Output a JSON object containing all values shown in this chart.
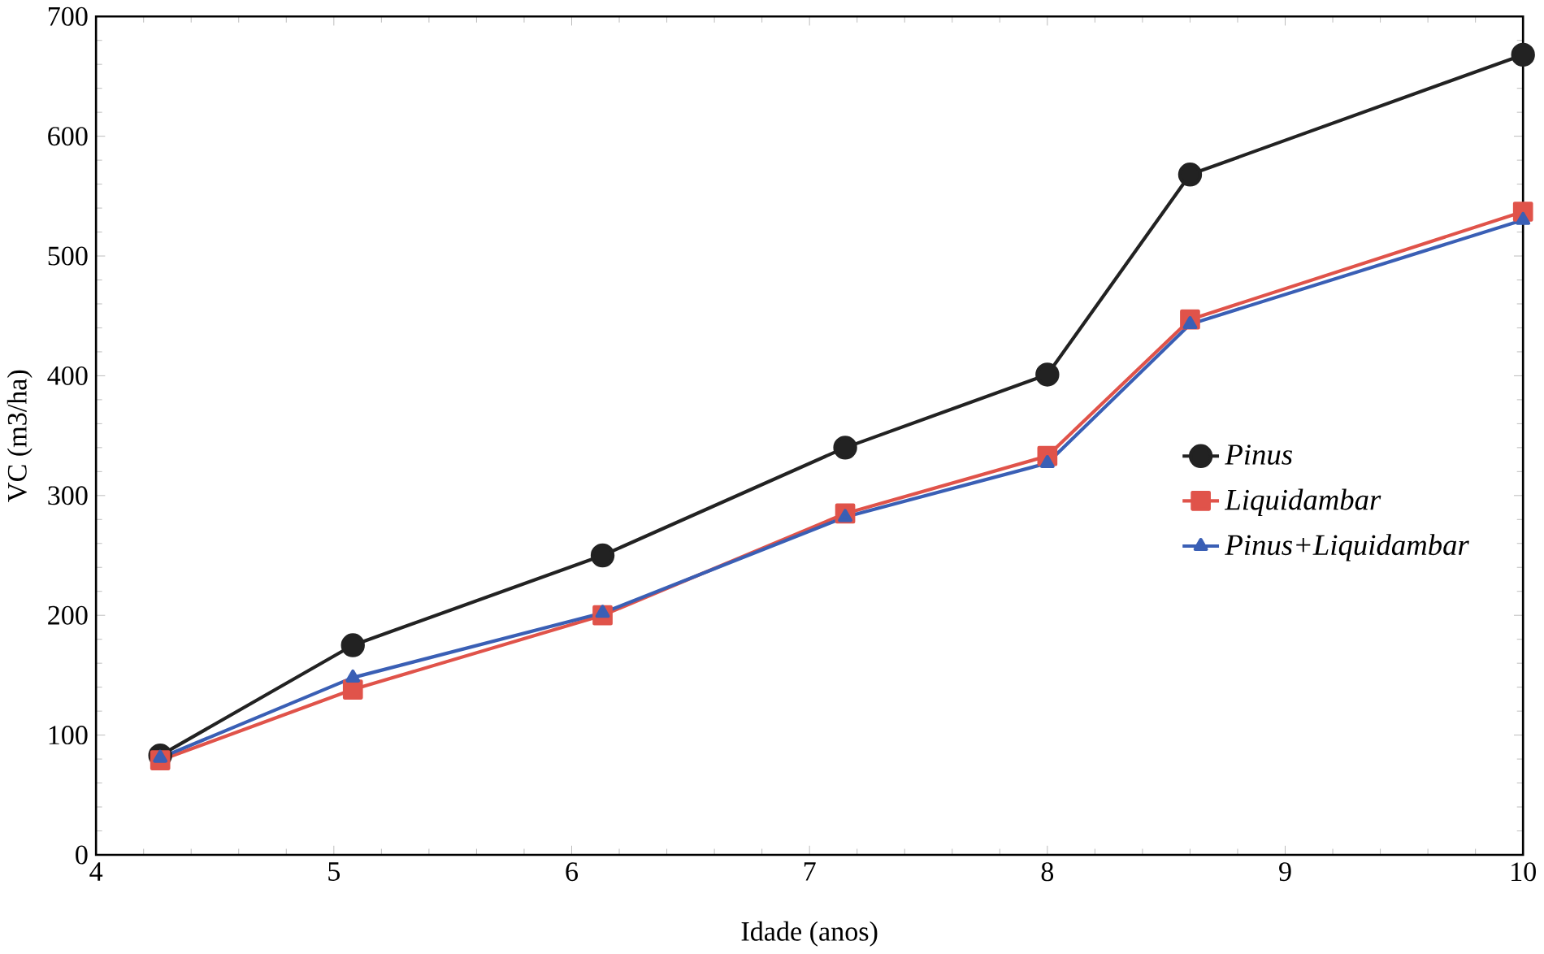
{
  "chart_data": {
    "type": "line",
    "xlabel": "Idade (anos)",
    "ylabel": "VC (m3/ha)",
    "x": [
      4.27,
      5.08,
      6.13,
      7.15,
      8.0,
      8.6,
      10.0
    ],
    "xlim": [
      4,
      10
    ],
    "xticks": [
      4,
      5,
      6,
      7,
      8,
      9,
      10
    ],
    "ylim": [
      0,
      700
    ],
    "yticks": [
      0,
      100,
      200,
      300,
      400,
      500,
      600,
      700
    ],
    "legend": "right",
    "grid": false,
    "series": [
      {
        "name": "*Pinus*",
        "color": "#222222",
        "marker": "circle",
        "values": [
          83,
          175,
          250,
          340,
          401,
          568,
          668
        ]
      },
      {
        "name": "*Liquidambar*",
        "color": "#e0534a",
        "marker": "square",
        "values": [
          79,
          138,
          200,
          285,
          333,
          447,
          537
        ]
      },
      {
        "name": "*Pinus+Liquidambar*",
        "color": "#3a5fb5",
        "marker": "triangle",
        "values": [
          81,
          148,
          202,
          282,
          327,
          443,
          530
        ]
      }
    ]
  }
}
